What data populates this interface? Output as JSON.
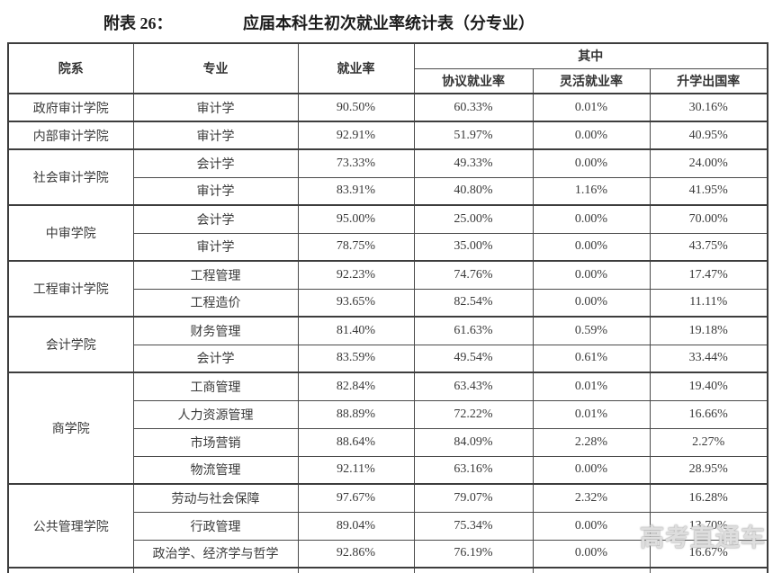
{
  "title": {
    "prefix": "附表 26：",
    "main": "应届本科生初次就业率统计表（分专业）"
  },
  "table": {
    "col_headers": {
      "department": "院系",
      "major": "专业",
      "employment_rate": "就业率",
      "among_group": "其中",
      "contract_rate": "协议就业率",
      "flexible_rate": "灵活就业率",
      "further_study_abroad_rate": "升学出国率"
    },
    "groups": [
      {
        "department": "政府审计学院",
        "rows": [
          {
            "major": "审计学",
            "employment": "90.50%",
            "contract": "60.33%",
            "flexible": "0.01%",
            "abroad": "30.16%"
          }
        ]
      },
      {
        "department": "内部审计学院",
        "rows": [
          {
            "major": "审计学",
            "employment": "92.91%",
            "contract": "51.97%",
            "flexible": "0.00%",
            "abroad": "40.95%"
          }
        ]
      },
      {
        "department": "社会审计学院",
        "rows": [
          {
            "major": "会计学",
            "employment": "73.33%",
            "contract": "49.33%",
            "flexible": "0.00%",
            "abroad": "24.00%"
          },
          {
            "major": "审计学",
            "employment": "83.91%",
            "contract": "40.80%",
            "flexible": "1.16%",
            "abroad": "41.95%"
          }
        ]
      },
      {
        "department": "中审学院",
        "rows": [
          {
            "major": "会计学",
            "employment": "95.00%",
            "contract": "25.00%",
            "flexible": "0.00%",
            "abroad": "70.00%"
          },
          {
            "major": "审计学",
            "employment": "78.75%",
            "contract": "35.00%",
            "flexible": "0.00%",
            "abroad": "43.75%"
          }
        ]
      },
      {
        "department": "工程审计学院",
        "rows": [
          {
            "major": "工程管理",
            "employment": "92.23%",
            "contract": "74.76%",
            "flexible": "0.00%",
            "abroad": "17.47%"
          },
          {
            "major": "工程造价",
            "employment": "93.65%",
            "contract": "82.54%",
            "flexible": "0.00%",
            "abroad": "11.11%"
          }
        ]
      },
      {
        "department": "会计学院",
        "rows": [
          {
            "major": "财务管理",
            "employment": "81.40%",
            "contract": "61.63%",
            "flexible": "0.59%",
            "abroad": "19.18%"
          },
          {
            "major": "会计学",
            "employment": "83.59%",
            "contract": "49.54%",
            "flexible": "0.61%",
            "abroad": "33.44%"
          }
        ]
      },
      {
        "department": "商学院",
        "rows": [
          {
            "major": "工商管理",
            "employment": "82.84%",
            "contract": "63.43%",
            "flexible": "0.01%",
            "abroad": "19.40%"
          },
          {
            "major": "人力资源管理",
            "employment": "88.89%",
            "contract": "72.22%",
            "flexible": "0.01%",
            "abroad": "16.66%"
          },
          {
            "major": "市场营销",
            "employment": "88.64%",
            "contract": "84.09%",
            "flexible": "2.28%",
            "abroad": "2.27%"
          },
          {
            "major": "物流管理",
            "employment": "92.11%",
            "contract": "63.16%",
            "flexible": "0.00%",
            "abroad": "28.95%"
          }
        ]
      },
      {
        "department": "公共管理学院",
        "rows": [
          {
            "major": "劳动与社会保障",
            "employment": "97.67%",
            "contract": "79.07%",
            "flexible": "2.32%",
            "abroad": "16.28%"
          },
          {
            "major": "行政管理",
            "employment": "89.04%",
            "contract": "75.34%",
            "flexible": "0.00%",
            "abroad": "13.70%"
          },
          {
            "major": "政治学、经济学与哲学",
            "employment": "92.86%",
            "contract": "76.19%",
            "flexible": "0.00%",
            "abroad": "16.67%"
          }
        ]
      }
    ],
    "partial_bottom_row": true
  },
  "watermark": {
    "text": "高考直通车"
  },
  "colors": {
    "background": "#ffffff",
    "border": "#4a4a4a",
    "border_thick": "#3d3d3d",
    "text": "#3a3a3a",
    "title_text": "#1c1c1c",
    "watermark_text": "#e2e2e2"
  }
}
